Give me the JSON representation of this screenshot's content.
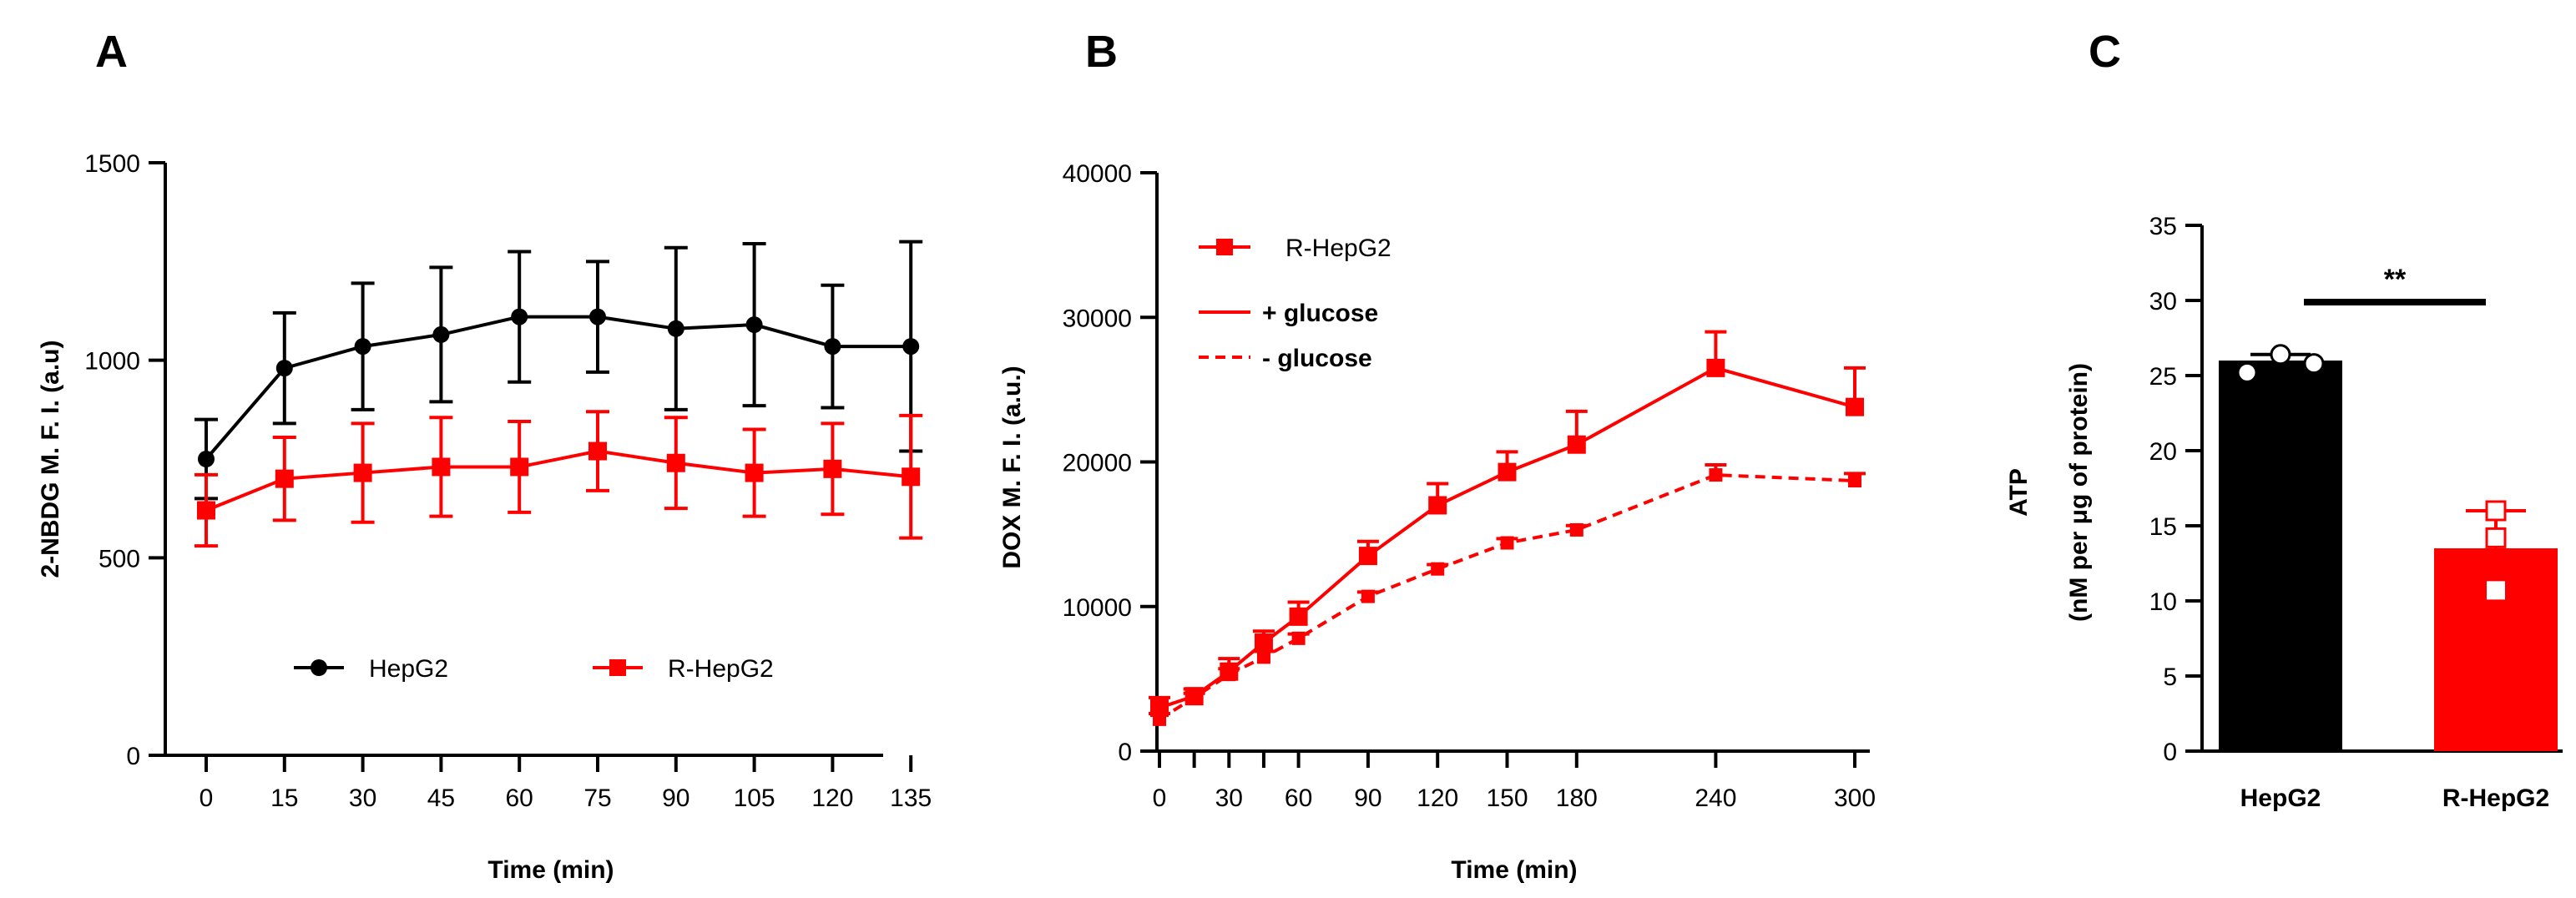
{
  "colors": {
    "black": "#000000",
    "red": "#ff0000",
    "white": "#ffffff"
  },
  "chart_data": [
    {
      "panel": "A",
      "type": "line",
      "xlabel": "Time (min)",
      "ylabel": "2-NBDG M. F. I. (a.u)",
      "ylim": [
        0,
        1500
      ],
      "yticks": [
        0,
        500,
        1000,
        1500
      ],
      "x": [
        0,
        15,
        30,
        45,
        60,
        75,
        90,
        105,
        120,
        135
      ],
      "series": [
        {
          "name": "HepG2",
          "color": "#000000",
          "marker": "circle",
          "values": [
            750,
            980,
            1035,
            1065,
            1110,
            1110,
            1080,
            1090,
            1035,
            1035
          ],
          "errors": [
            100,
            140,
            160,
            170,
            165,
            140,
            205,
            205,
            155,
            265
          ]
        },
        {
          "name": "R-HepG2",
          "color": "#ff0000",
          "marker": "square",
          "values": [
            620,
            700,
            715,
            730,
            730,
            770,
            740,
            715,
            725,
            705
          ],
          "errors": [
            90,
            105,
            125,
            125,
            115,
            100,
            115,
            110,
            115,
            155
          ]
        }
      ],
      "legend": "bottom"
    },
    {
      "panel": "B",
      "type": "line",
      "xlabel": "Time (min)",
      "ylabel": "DOX M. F. I. (a.u.)",
      "ylim": [
        0,
        40000
      ],
      "yticks": [
        0,
        10000,
        20000,
        30000,
        40000
      ],
      "x": [
        0,
        15,
        30,
        45,
        60,
        90,
        120,
        150,
        180,
        240,
        300
      ],
      "legend_title": "R-HepG2",
      "series": [
        {
          "name": "+ glucose",
          "color": "#ff0000",
          "dash": "solid",
          "values": [
            3000,
            3800,
            5500,
            7500,
            9300,
            13500,
            17000,
            19300,
            21200,
            26500,
            23800
          ],
          "errors": [
            700,
            500,
            900,
            800,
            1000,
            1000,
            1500,
            1400,
            2300,
            2500,
            2700
          ]
        },
        {
          "name": "- glucose",
          "color": "#ff0000",
          "dash": "dashed",
          "values": [
            2200,
            3700,
            5300,
            6500,
            7800,
            10700,
            12600,
            14400,
            15300,
            19100,
            18700
          ],
          "errors": [
            400,
            300,
            400,
            400,
            300,
            300,
            300,
            300,
            300,
            700,
            500
          ]
        }
      ],
      "legend": "top-left"
    },
    {
      "panel": "C",
      "type": "bar",
      "xlabel": "",
      "ylabel": "ATP",
      "ylabel_sub": "(nM per μg of protein)",
      "ylim": [
        0,
        35
      ],
      "yticks": [
        0,
        5,
        10,
        15,
        20,
        25,
        30,
        35
      ],
      "categories": [
        "HepG2",
        "R-HepG2"
      ],
      "values": [
        26.0,
        13.5
      ],
      "errors": [
        0.4,
        2.5
      ],
      "points": [
        [
          25.2,
          26.4,
          25.8
        ],
        [
          16.0,
          14.2,
          10.7
        ]
      ],
      "colors": [
        "#000000",
        "#ff0000"
      ],
      "significance": "**"
    }
  ]
}
